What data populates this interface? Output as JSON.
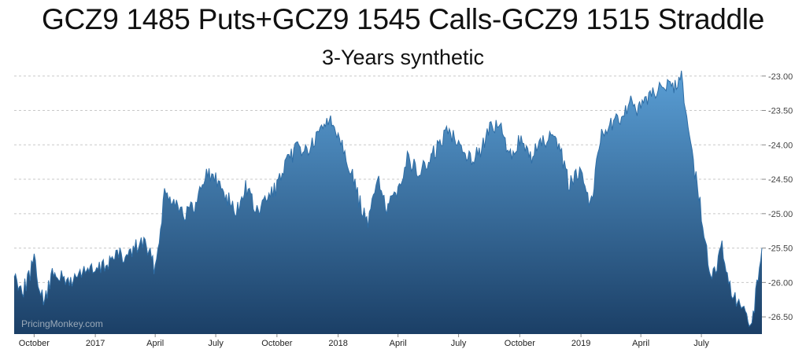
{
  "title": "GCZ9 1485 Puts+GCZ9 1545 Calls-GCZ9 1515 Straddle",
  "subtitle": "3-Years synthetic",
  "watermark": "PricingMonkey.com",
  "colors": {
    "fill_top": "#5a9fd6",
    "fill_bottom": "#1b3f66",
    "line": "#2f6ea6",
    "grid": "#c8c8c8"
  },
  "chart_data": {
    "type": "area",
    "title": "GCZ9 1485 Puts+GCZ9 1545 Calls-GCZ9 1515 Straddle",
    "subtitle": "3-Years synthetic",
    "y_axis_position": "right",
    "ylim": [
      -26.75,
      -22.9
    ],
    "y_ticks": [
      "-23.00",
      "-23.50",
      "-24.00",
      "-24.50",
      "-25.00",
      "-25.50",
      "-26.00",
      "-26.50"
    ],
    "y_tick_values": [
      -23.0,
      -23.5,
      -24.0,
      -24.5,
      -25.0,
      -25.5,
      -26.0,
      -26.5
    ],
    "x_ticks": [
      "October",
      "2017",
      "April",
      "July",
      "October",
      "2018",
      "April",
      "July",
      "October",
      "2019",
      "April",
      "July"
    ],
    "x_tick_dates": [
      "2016-10-01",
      "2017-01-01",
      "2017-04-01",
      "2017-07-01",
      "2017-10-01",
      "2018-01-01",
      "2018-04-01",
      "2018-07-01",
      "2018-10-01",
      "2019-01-01",
      "2019-04-01",
      "2019-07-01"
    ],
    "xlim": [
      "2016-09-01",
      "2019-09-30"
    ],
    "grid": "horizontal dashed",
    "series": [
      {
        "x": [
          "2016-09-01",
          "2016-09-15",
          "2016-10-01",
          "2016-10-15",
          "2016-11-01",
          "2016-11-15",
          "2016-12-01",
          "2016-12-15",
          "2017-01-01",
          "2017-01-15",
          "2017-02-01",
          "2017-02-15",
          "2017-03-01",
          "2017-03-15",
          "2017-04-01",
          "2017-04-15",
          "2017-05-01",
          "2017-05-15",
          "2017-06-01",
          "2017-06-15",
          "2017-07-01",
          "2017-07-15",
          "2017-08-01",
          "2017-08-15",
          "2017-09-01",
          "2017-09-15",
          "2017-10-01",
          "2017-10-15",
          "2017-11-01",
          "2017-11-15",
          "2017-12-01",
          "2017-12-15",
          "2018-01-01",
          "2018-01-15",
          "2018-02-01",
          "2018-02-15",
          "2018-03-01",
          "2018-03-15",
          "2018-04-01",
          "2018-04-15",
          "2018-05-01",
          "2018-05-15",
          "2018-06-01",
          "2018-06-15",
          "2018-07-01",
          "2018-07-15",
          "2018-08-01",
          "2018-08-15",
          "2018-09-01",
          "2018-09-15",
          "2018-10-01",
          "2018-10-15",
          "2018-11-01",
          "2018-11-15",
          "2018-12-01",
          "2018-12-15",
          "2019-01-01",
          "2019-01-15",
          "2019-02-01",
          "2019-02-15",
          "2019-03-01",
          "2019-03-15",
          "2019-04-01",
          "2019-04-15",
          "2019-05-01",
          "2019-05-15",
          "2019-06-01",
          "2019-06-15",
          "2019-07-01",
          "2019-07-15",
          "2019-08-01",
          "2019-08-15",
          "2019-09-01",
          "2019-09-15",
          "2019-09-30"
        ],
        "y": [
          -25.9,
          -26.1,
          -25.7,
          -26.3,
          -25.8,
          -26.0,
          -25.95,
          -25.8,
          -25.85,
          -25.75,
          -25.6,
          -25.65,
          -25.5,
          -25.4,
          -25.8,
          -24.7,
          -24.8,
          -25.0,
          -24.9,
          -24.4,
          -24.5,
          -24.7,
          -25.0,
          -24.6,
          -25.0,
          -24.8,
          -24.6,
          -24.3,
          -24.0,
          -24.1,
          -23.9,
          -23.6,
          -23.8,
          -24.2,
          -24.8,
          -25.2,
          -24.4,
          -25.0,
          -24.6,
          -24.2,
          -24.4,
          -24.3,
          -24.0,
          -23.8,
          -23.9,
          -24.2,
          -24.1,
          -23.8,
          -23.7,
          -24.2,
          -23.9,
          -24.2,
          -24.0,
          -23.9,
          -24.1,
          -24.6,
          -24.3,
          -24.9,
          -23.8,
          -23.7,
          -23.6,
          -23.4,
          -23.5,
          -23.3,
          -23.1,
          -23.2,
          -23.0,
          -24.0,
          -25.0,
          -26.0,
          -25.5,
          -26.2,
          -26.4,
          -26.6,
          -25.5
        ]
      }
    ]
  }
}
